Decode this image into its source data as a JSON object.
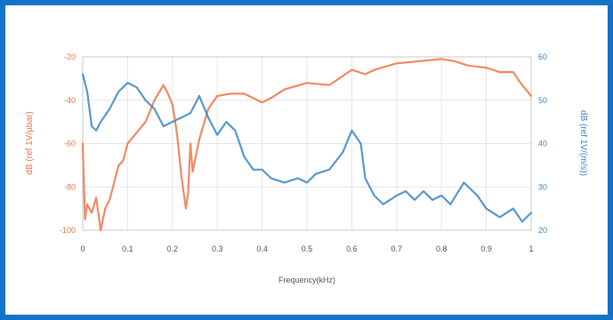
{
  "chart_data": {
    "type": "line",
    "xlabel": "Frequency(kHz)",
    "x_ticks": [
      "0",
      "0.1",
      "0.2",
      "0.3",
      "0.4",
      "0.5",
      "0.6",
      "0.7",
      "0.8",
      "0.9",
      "1"
    ],
    "y_left": {
      "label": "dB (ref 1V/µbar)",
      "ticks": [
        "-100",
        "-80",
        "-60",
        "-40",
        "-20"
      ],
      "range": [
        -100,
        -20
      ],
      "color": "#f0754a"
    },
    "y_right": {
      "label": "dB (ref 1V/(m/s))",
      "ticks": [
        "20",
        "30",
        "40",
        "50",
        "60"
      ],
      "range": [
        20,
        60
      ],
      "color": "#3b87c8"
    },
    "xlim": [
      0,
      1
    ],
    "grid": true,
    "series": [
      {
        "axis": "left",
        "color": "#f0754a",
        "x": [
          0,
          0.005,
          0.01,
          0.02,
          0.03,
          0.04,
          0.05,
          0.06,
          0.07,
          0.08,
          0.09,
          0.1,
          0.12,
          0.14,
          0.16,
          0.18,
          0.19,
          0.2,
          0.21,
          0.22,
          0.23,
          0.235,
          0.24,
          0.245,
          0.25,
          0.26,
          0.28,
          0.3,
          0.33,
          0.36,
          0.4,
          0.42,
          0.45,
          0.5,
          0.55,
          0.6,
          0.63,
          0.65,
          0.7,
          0.75,
          0.8,
          0.83,
          0.86,
          0.9,
          0.93,
          0.96,
          0.98,
          1
        ],
        "y": [
          -60,
          -95,
          -88,
          -92,
          -85,
          -100,
          -90,
          -86,
          -78,
          -70,
          -68,
          -60,
          -55,
          -50,
          -40,
          -33,
          -37,
          -42,
          -55,
          -75,
          -90,
          -83,
          -60,
          -73,
          -68,
          -58,
          -44,
          -38,
          -37,
          -37,
          -41,
          -39,
          -35,
          -32,
          -33,
          -26,
          -28,
          -26,
          -23,
          -22,
          -21,
          -22,
          -24,
          -25,
          -27,
          -27,
          -33,
          -38
        ]
      },
      {
        "axis": "right",
        "color": "#3b87c8",
        "x": [
          0,
          0.01,
          0.02,
          0.03,
          0.04,
          0.06,
          0.08,
          0.1,
          0.12,
          0.14,
          0.16,
          0.18,
          0.2,
          0.22,
          0.24,
          0.26,
          0.28,
          0.3,
          0.32,
          0.34,
          0.36,
          0.38,
          0.4,
          0.42,
          0.45,
          0.48,
          0.5,
          0.52,
          0.55,
          0.58,
          0.6,
          0.62,
          0.63,
          0.65,
          0.67,
          0.7,
          0.72,
          0.74,
          0.76,
          0.78,
          0.8,
          0.82,
          0.85,
          0.88,
          0.9,
          0.93,
          0.96,
          0.98,
          1
        ],
        "y": [
          56,
          52,
          44,
          43,
          45,
          48,
          52,
          54,
          53,
          50,
          48,
          44,
          45,
          46,
          47,
          51,
          46,
          42,
          45,
          43,
          37,
          34,
          34,
          32,
          31,
          32,
          31,
          33,
          34,
          38,
          43,
          40,
          32,
          28,
          26,
          28,
          29,
          27,
          29,
          27,
          28,
          26,
          31,
          28,
          25,
          23,
          25,
          22,
          24
        ]
      }
    ]
  }
}
